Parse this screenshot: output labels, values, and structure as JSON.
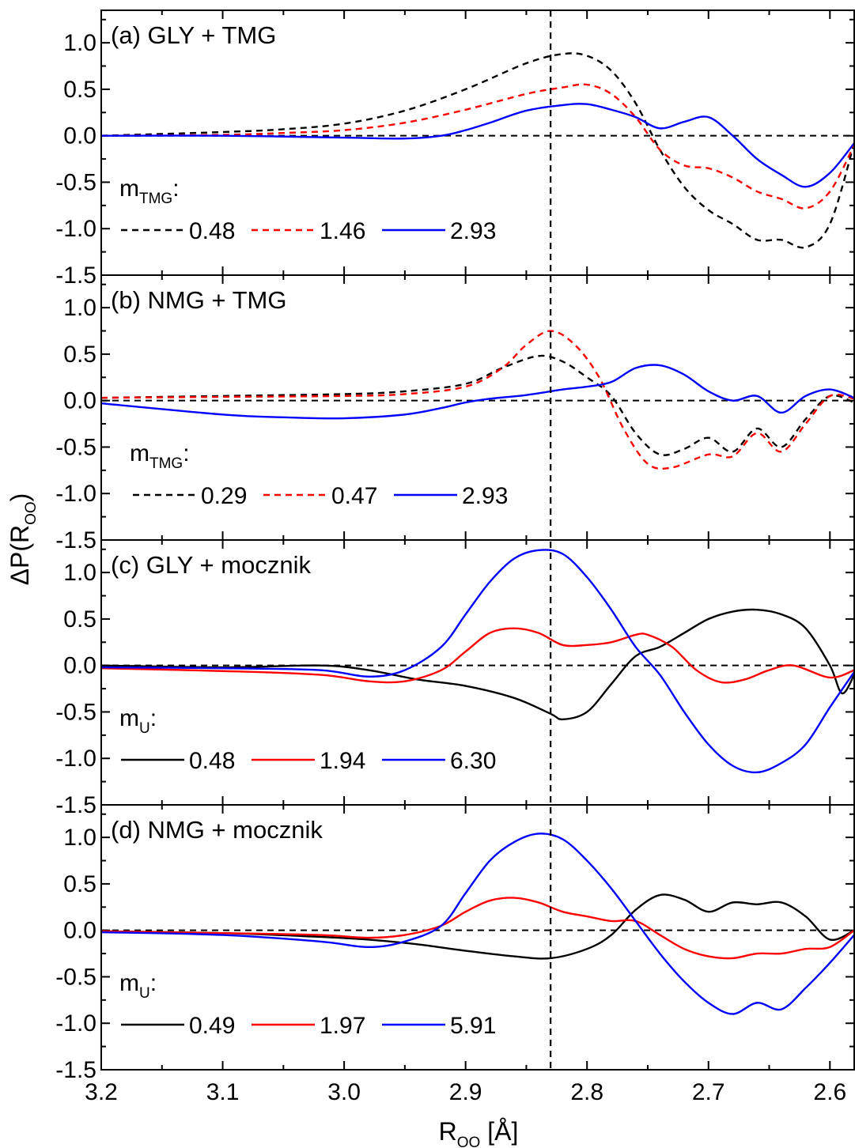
{
  "chart_data": {
    "type": "line",
    "xlabel_main": "R",
    "xlabel_sub": "OO",
    "xlabel_unit": " [Å]",
    "ylabel_main": "ΔP(R",
    "ylabel_sub": "OO",
    "ylabel_close": ")",
    "xlim": [
      3.2,
      2.58
    ],
    "x_reversed": true,
    "xticks": [
      3.2,
      3.1,
      3.0,
      2.9,
      2.8,
      2.7,
      2.6
    ],
    "xtick_labels": [
      "3.2",
      "3.1",
      "3.0",
      "2.9",
      "2.8",
      "2.7",
      "2.6"
    ],
    "ylim": [
      -1.5,
      1.35
    ],
    "yticks": [
      1.0,
      0.5,
      0.0,
      -0.5,
      -1.0,
      -1.5
    ],
    "ytick_labels": [
      "1.0",
      "0.5",
      "0.0",
      "-0.5",
      "-1.0",
      "-1.5"
    ],
    "zero_line": 0.0,
    "vertical_line_x": 2.83,
    "panels": [
      {
        "title": "(a) GLY + TMG",
        "legend_label": "m",
        "legend_sub": "TMG",
        "legend_suffix": ":",
        "series": [
          {
            "name": "0.48",
            "color": "#000000",
            "dash": true,
            "x": [
              3.2,
              3.1,
              3.05,
              3.0,
              2.95,
              2.9,
              2.85,
              2.82,
              2.8,
              2.78,
              2.76,
              2.74,
              2.72,
              2.7,
              2.68,
              2.66,
              2.64,
              2.62,
              2.6,
              2.58
            ],
            "y": [
              0.0,
              0.04,
              0.07,
              0.13,
              0.27,
              0.5,
              0.78,
              0.88,
              0.86,
              0.7,
              0.35,
              -0.15,
              -0.55,
              -0.8,
              -0.95,
              -1.12,
              -1.12,
              -1.2,
              -0.95,
              -0.08
            ]
          },
          {
            "name": "1.46",
            "color": "#ff0000",
            "dash": true,
            "x": [
              3.2,
              3.1,
              3.05,
              3.0,
              2.95,
              2.9,
              2.85,
              2.82,
              2.8,
              2.78,
              2.76,
              2.74,
              2.72,
              2.7,
              2.68,
              2.66,
              2.64,
              2.62,
              2.6,
              2.58
            ],
            "y": [
              0.0,
              0.01,
              0.03,
              0.06,
              0.14,
              0.28,
              0.45,
              0.52,
              0.55,
              0.45,
              0.2,
              -0.15,
              -0.32,
              -0.35,
              -0.45,
              -0.6,
              -0.68,
              -0.78,
              -0.6,
              -0.1
            ]
          },
          {
            "name": "2.93",
            "color": "#0000ff",
            "dash": false,
            "x": [
              3.2,
              3.1,
              3.0,
              2.95,
              2.92,
              2.9,
              2.88,
              2.85,
              2.82,
              2.8,
              2.78,
              2.76,
              2.74,
              2.72,
              2.7,
              2.68,
              2.66,
              2.64,
              2.62,
              2.6,
              2.58
            ],
            "y": [
              0.0,
              0.0,
              -0.02,
              -0.03,
              0.0,
              0.06,
              0.14,
              0.27,
              0.33,
              0.34,
              0.28,
              0.2,
              0.08,
              0.15,
              0.2,
              0.0,
              -0.25,
              -0.42,
              -0.55,
              -0.4,
              -0.08
            ]
          }
        ]
      },
      {
        "title": "(b) NMG + TMG",
        "legend_label": "m",
        "legend_sub": "TMG",
        "legend_suffix": ":",
        "series": [
          {
            "name": "0.29",
            "color": "#000000",
            "dash": true,
            "x": [
              3.2,
              3.1,
              3.0,
              2.95,
              2.9,
              2.87,
              2.84,
              2.82,
              2.8,
              2.78,
              2.76,
              2.74,
              2.72,
              2.7,
              2.68,
              2.66,
              2.64,
              2.62,
              2.6,
              2.58
            ],
            "y": [
              0.03,
              0.05,
              0.07,
              0.1,
              0.18,
              0.35,
              0.48,
              0.42,
              0.25,
              0.05,
              -0.35,
              -0.58,
              -0.52,
              -0.4,
              -0.55,
              -0.3,
              -0.5,
              -0.2,
              0.05,
              -0.02
            ]
          },
          {
            "name": "0.47",
            "color": "#ff0000",
            "dash": true,
            "x": [
              3.2,
              3.1,
              3.0,
              2.95,
              2.9,
              2.87,
              2.85,
              2.83,
              2.81,
              2.79,
              2.77,
              2.75,
              2.73,
              2.7,
              2.68,
              2.66,
              2.64,
              2.62,
              2.6,
              2.58
            ],
            "y": [
              0.03,
              0.04,
              0.05,
              0.07,
              0.15,
              0.35,
              0.6,
              0.75,
              0.6,
              0.25,
              -0.3,
              -0.68,
              -0.72,
              -0.58,
              -0.6,
              -0.35,
              -0.55,
              -0.25,
              0.05,
              0.02
            ]
          },
          {
            "name": "2.93",
            "color": "#0000ff",
            "dash": false,
            "x": [
              3.2,
              3.1,
              3.05,
              3.0,
              2.95,
              2.92,
              2.9,
              2.88,
              2.85,
              2.82,
              2.8,
              2.78,
              2.76,
              2.74,
              2.72,
              2.7,
              2.68,
              2.66,
              2.64,
              2.62,
              2.6,
              2.58
            ],
            "y": [
              -0.03,
              -0.15,
              -0.18,
              -0.19,
              -0.15,
              -0.08,
              -0.02,
              0.02,
              0.06,
              0.12,
              0.15,
              0.2,
              0.35,
              0.38,
              0.28,
              0.1,
              0.0,
              0.05,
              -0.13,
              0.05,
              0.12,
              0.03
            ]
          }
        ]
      },
      {
        "title": "(c) GLY + mocznik",
        "legend_label": "m",
        "legend_sub": "U",
        "legend_suffix": ":",
        "series": [
          {
            "name": "0.48",
            "color": "#000000",
            "dash": false,
            "x": [
              3.2,
              3.1,
              3.02,
              2.98,
              2.94,
              2.9,
              2.86,
              2.83,
              2.82,
              2.8,
              2.78,
              2.76,
              2.74,
              2.72,
              2.7,
              2.68,
              2.66,
              2.64,
              2.62,
              2.6,
              2.59,
              2.58
            ],
            "y": [
              0.0,
              -0.02,
              0.0,
              -0.05,
              -0.15,
              -0.22,
              -0.35,
              -0.52,
              -0.58,
              -0.5,
              -0.2,
              0.1,
              0.2,
              0.35,
              0.5,
              0.58,
              0.6,
              0.55,
              0.4,
              0.0,
              -0.3,
              -0.1
            ]
          },
          {
            "name": "1.94",
            "color": "#ff0000",
            "dash": false,
            "x": [
              3.2,
              3.1,
              3.02,
              2.98,
              2.95,
              2.92,
              2.9,
              2.88,
              2.86,
              2.84,
              2.82,
              2.8,
              2.78,
              2.76,
              2.75,
              2.73,
              2.71,
              2.69,
              2.67,
              2.65,
              2.63,
              2.6,
              2.58
            ],
            "y": [
              -0.03,
              -0.06,
              -0.1,
              -0.17,
              -0.17,
              -0.05,
              0.15,
              0.35,
              0.4,
              0.35,
              0.22,
              0.22,
              0.25,
              0.33,
              0.33,
              0.2,
              -0.05,
              -0.18,
              -0.15,
              -0.05,
              0.0,
              -0.13,
              -0.05
            ]
          },
          {
            "name": "6.30",
            "color": "#0000ff",
            "dash": false,
            "x": [
              3.2,
              3.1,
              3.02,
              2.98,
              2.95,
              2.92,
              2.9,
              2.88,
              2.86,
              2.84,
              2.82,
              2.8,
              2.78,
              2.76,
              2.74,
              2.72,
              2.7,
              2.68,
              2.66,
              2.64,
              2.62,
              2.6,
              2.58
            ],
            "y": [
              -0.02,
              -0.03,
              -0.05,
              -0.12,
              -0.05,
              0.2,
              0.55,
              0.9,
              1.15,
              1.24,
              1.2,
              0.95,
              0.6,
              0.2,
              -0.1,
              -0.5,
              -0.85,
              -1.08,
              -1.15,
              -1.05,
              -0.85,
              -0.45,
              -0.07
            ]
          }
        ]
      },
      {
        "title": "(d) NMG + mocznik",
        "legend_label": "m",
        "legend_sub": "U",
        "legend_suffix": ":",
        "series": [
          {
            "name": "0.49",
            "color": "#000000",
            "dash": false,
            "x": [
              3.2,
              3.1,
              3.02,
              2.98,
              2.94,
              2.9,
              2.86,
              2.83,
              2.8,
              2.78,
              2.76,
              2.74,
              2.72,
              2.7,
              2.68,
              2.66,
              2.64,
              2.62,
              2.6,
              2.58
            ],
            "y": [
              -0.01,
              -0.03,
              -0.07,
              -0.1,
              -0.15,
              -0.22,
              -0.28,
              -0.3,
              -0.2,
              -0.05,
              0.22,
              0.38,
              0.33,
              0.2,
              0.3,
              0.28,
              0.3,
              0.15,
              -0.1,
              0.0
            ]
          },
          {
            "name": "1.97",
            "color": "#ff0000",
            "dash": false,
            "x": [
              3.2,
              3.1,
              3.02,
              2.98,
              2.95,
              2.92,
              2.9,
              2.88,
              2.86,
              2.84,
              2.82,
              2.8,
              2.78,
              2.76,
              2.74,
              2.72,
              2.7,
              2.68,
              2.66,
              2.64,
              2.62,
              2.6,
              2.58
            ],
            "y": [
              -0.01,
              -0.03,
              -0.05,
              -0.08,
              -0.05,
              0.05,
              0.2,
              0.32,
              0.35,
              0.3,
              0.2,
              0.15,
              0.1,
              0.1,
              -0.05,
              -0.2,
              -0.28,
              -0.3,
              -0.25,
              -0.25,
              -0.2,
              -0.18,
              0.0
            ]
          },
          {
            "name": "5.91",
            "color": "#0000ff",
            "dash": false,
            "x": [
              3.2,
              3.1,
              3.02,
              2.98,
              2.95,
              2.92,
              2.9,
              2.88,
              2.86,
              2.84,
              2.82,
              2.8,
              2.78,
              2.76,
              2.74,
              2.72,
              2.7,
              2.68,
              2.66,
              2.64,
              2.62,
              2.6,
              2.58
            ],
            "y": [
              -0.02,
              -0.05,
              -0.12,
              -0.18,
              -0.12,
              0.05,
              0.4,
              0.75,
              0.95,
              1.04,
              0.98,
              0.75,
              0.45,
              0.1,
              -0.25,
              -0.55,
              -0.78,
              -0.9,
              -0.78,
              -0.85,
              -0.62,
              -0.35,
              -0.05
            ]
          }
        ]
      }
    ]
  }
}
